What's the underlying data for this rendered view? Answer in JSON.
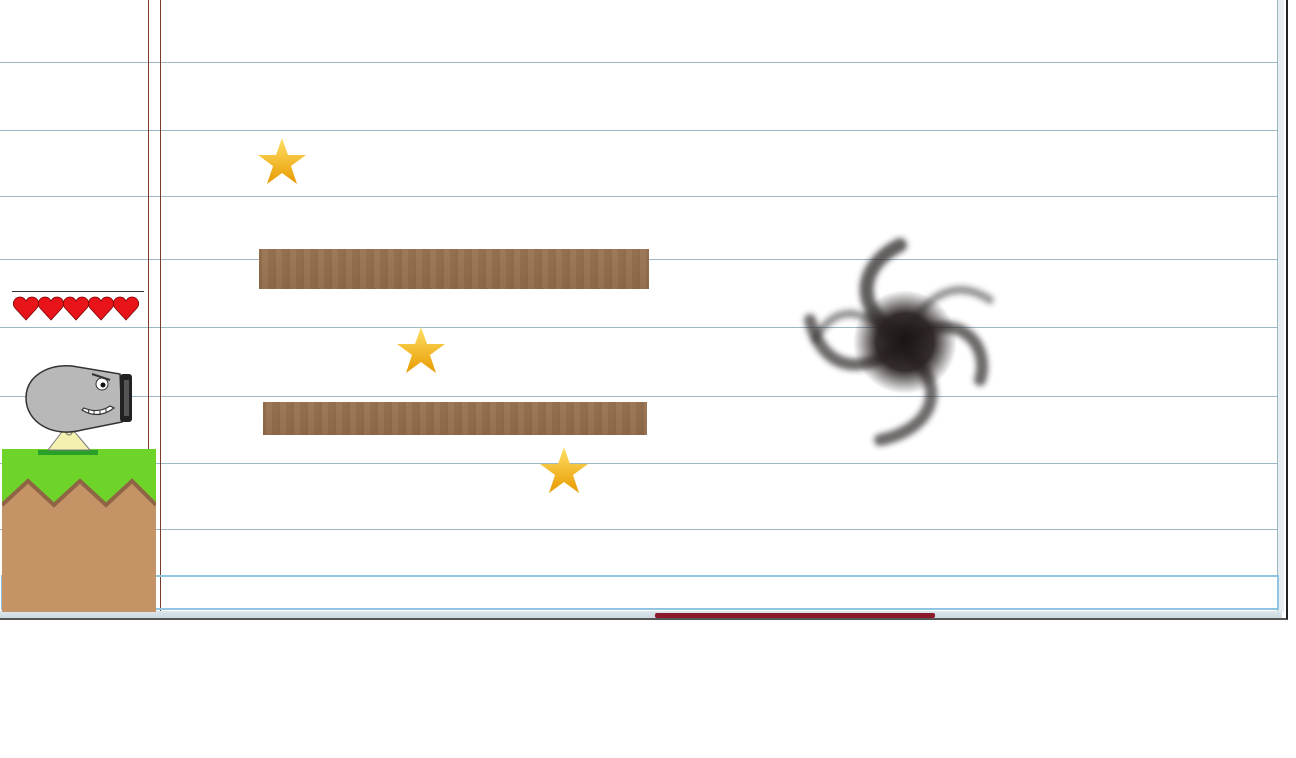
{
  "game": {
    "scene": "notebook-paper-level",
    "lives": 5,
    "lives_icon": "heart-icon",
    "stars_total": 3,
    "colors": {
      "paper": "#ffffff",
      "rule_line": "#9bb7c6",
      "margin_line": "#7a3a2a",
      "plank": "#8f6a49",
      "grass": "#6ed42a",
      "dirt": "#c49467",
      "heart": "#e8141a",
      "star": "#f5b800",
      "cannon": "#b8b8b8"
    },
    "objects": {
      "player": "cannon-character",
      "platforms": [
        "wooden-plank",
        "wooden-plank"
      ],
      "collectibles": [
        "star-icon",
        "star-icon",
        "star-icon"
      ],
      "goal": "black-hole-vortex"
    }
  }
}
